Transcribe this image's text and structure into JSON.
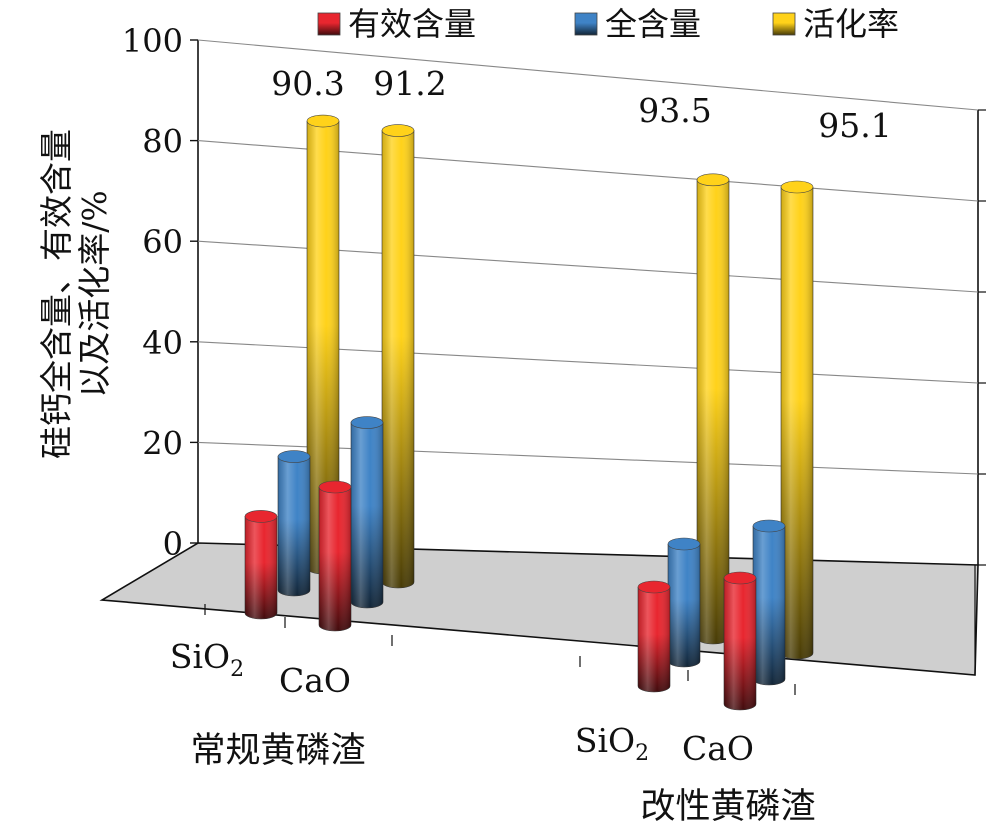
{
  "chart_data": {
    "type": "bar",
    "style": "3d-cylinder",
    "legend_position": "top-right",
    "grid": true,
    "ylabel_lines": [
      "硅钙全含量、有效含量",
      "以及活化率/%"
    ],
    "ylim": [
      0,
      100
    ],
    "yticks": [
      "0",
      "20",
      "40",
      "60",
      "80",
      "100"
    ],
    "groups": [
      {
        "name": "常规黄磷渣",
        "x_labels": [
          {
            "main": "SiO",
            "sub": "2"
          },
          {
            "main": "CaO",
            "sub": ""
          }
        ]
      },
      {
        "name": "改性黄磷渣",
        "x_labels": [
          {
            "main": "SiO",
            "sub": "2"
          },
          {
            "main": "CaO",
            "sub": ""
          }
        ]
      }
    ],
    "series": [
      {
        "name": "有效含量",
        "color": "#e8262f",
        "values": [
          [
            21,
            30
          ],
          [
            22,
            28
          ]
        ]
      },
      {
        "name": "全含量",
        "color": "#3f83c6",
        "values": [
          [
            29,
            39
          ],
          [
            26,
            34
          ]
        ]
      },
      {
        "name": "活化率",
        "color": "#ffd21a",
        "values": [
          [
            90.3,
            91.2
          ],
          [
            93.5,
            95.1
          ]
        ]
      }
    ],
    "data_labels": [
      "90.3",
      "91.2",
      "93.5",
      "95.1"
    ]
  }
}
